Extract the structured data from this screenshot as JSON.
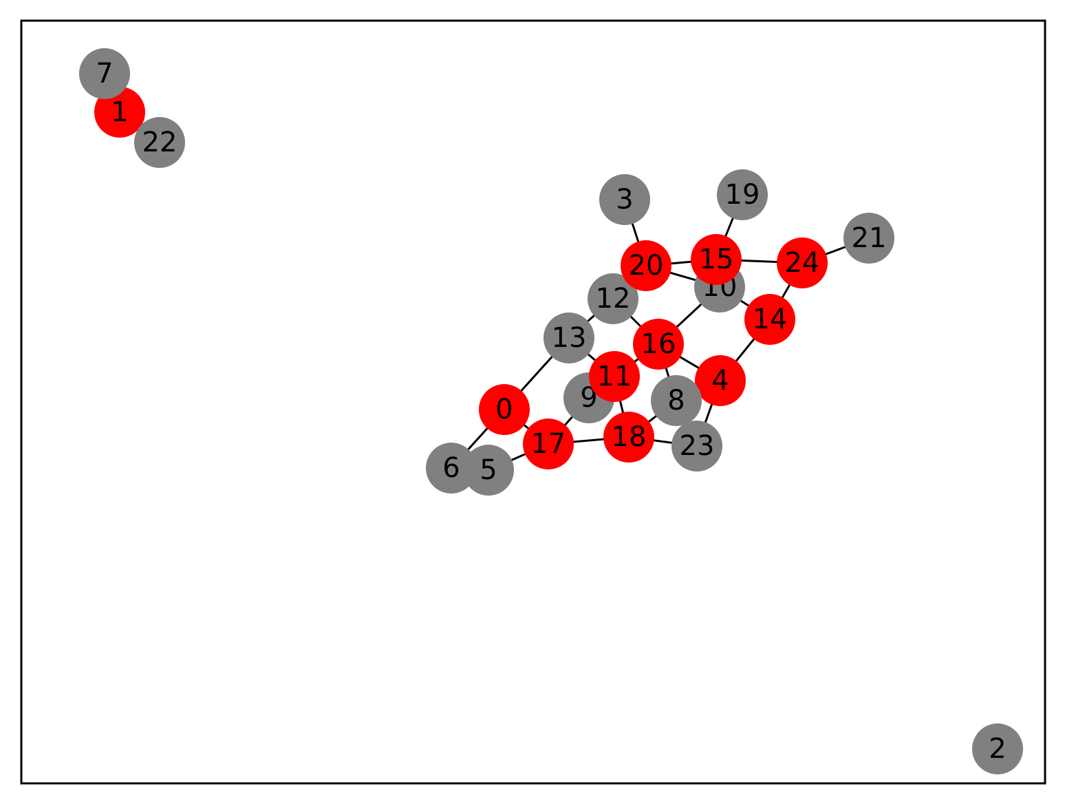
{
  "graph": {
    "colors": {
      "highlighted": "#ff0000",
      "default": "#808080",
      "edge": "#000000",
      "label": "#000000",
      "frame": "#000000"
    },
    "nodes": [
      {
        "id": "0",
        "state": "highlighted"
      },
      {
        "id": "1",
        "state": "highlighted"
      },
      {
        "id": "2",
        "state": "default"
      },
      {
        "id": "3",
        "state": "default"
      },
      {
        "id": "4",
        "state": "highlighted"
      },
      {
        "id": "5",
        "state": "default"
      },
      {
        "id": "6",
        "state": "default"
      },
      {
        "id": "7",
        "state": "default"
      },
      {
        "id": "8",
        "state": "default"
      },
      {
        "id": "9",
        "state": "default"
      },
      {
        "id": "10",
        "state": "default"
      },
      {
        "id": "11",
        "state": "highlighted"
      },
      {
        "id": "12",
        "state": "default"
      },
      {
        "id": "13",
        "state": "default"
      },
      {
        "id": "14",
        "state": "highlighted"
      },
      {
        "id": "15",
        "state": "highlighted"
      },
      {
        "id": "16",
        "state": "highlighted"
      },
      {
        "id": "17",
        "state": "highlighted"
      },
      {
        "id": "18",
        "state": "highlighted"
      },
      {
        "id": "19",
        "state": "default"
      },
      {
        "id": "20",
        "state": "highlighted"
      },
      {
        "id": "21",
        "state": "default"
      },
      {
        "id": "22",
        "state": "default"
      },
      {
        "id": "23",
        "state": "default"
      },
      {
        "id": "24",
        "state": "highlighted"
      }
    ],
    "edges": [
      [
        "1",
        "7"
      ],
      [
        "1",
        "22"
      ],
      [
        "0",
        "13"
      ],
      [
        "0",
        "6"
      ],
      [
        "0",
        "17"
      ],
      [
        "17",
        "5"
      ],
      [
        "17",
        "9"
      ],
      [
        "17",
        "18"
      ],
      [
        "9",
        "11"
      ],
      [
        "13",
        "12"
      ],
      [
        "13",
        "11"
      ],
      [
        "11",
        "16"
      ],
      [
        "11",
        "18"
      ],
      [
        "12",
        "20"
      ],
      [
        "12",
        "16"
      ],
      [
        "16",
        "10"
      ],
      [
        "16",
        "8"
      ],
      [
        "16",
        "4"
      ],
      [
        "18",
        "8"
      ],
      [
        "18",
        "23"
      ],
      [
        "4",
        "23"
      ],
      [
        "4",
        "14"
      ],
      [
        "20",
        "3"
      ],
      [
        "20",
        "15"
      ],
      [
        "20",
        "10"
      ],
      [
        "15",
        "19"
      ],
      [
        "15",
        "24"
      ],
      [
        "10",
        "14"
      ],
      [
        "14",
        "24"
      ],
      [
        "24",
        "21"
      ]
    ]
  }
}
